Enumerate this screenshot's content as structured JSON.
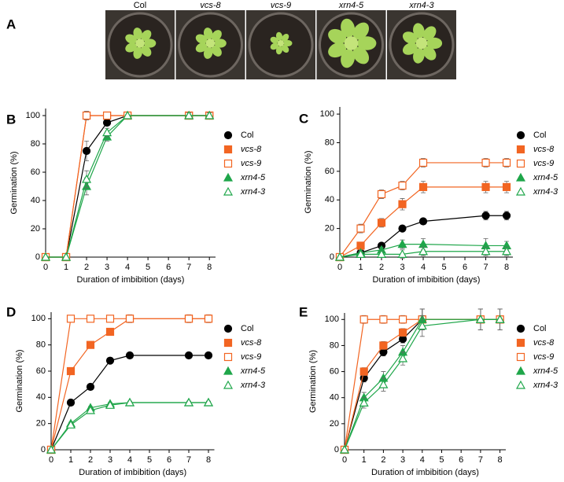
{
  "panel_a": {
    "label": "A",
    "genotypes": [
      "Col",
      "vcs-8",
      "vcs-9",
      "xrn4-5",
      "xrn4-3"
    ]
  },
  "chart_data": [
    {
      "type": "line",
      "panel": "B",
      "x_label": "Duration of imbibition (days)",
      "y_label": "Germination (%)",
      "x": [
        0,
        1,
        2,
        3,
        4,
        7,
        8
      ],
      "xlim": [
        0,
        8.3
      ],
      "xticks": [
        0,
        1,
        2,
        3,
        4,
        5,
        6,
        7,
        8
      ],
      "ylim": [
        0,
        105
      ],
      "yticks": [
        0,
        20,
        40,
        60,
        80,
        100
      ],
      "series": [
        {
          "name": "Col",
          "color": "#000000",
          "marker": "circle",
          "filled": true,
          "values": [
            0,
            0,
            75,
            95,
            100,
            100,
            100
          ],
          "errors": [
            0,
            0,
            7,
            2,
            0,
            2,
            2
          ]
        },
        {
          "name": "vcs-8",
          "color": "#f26522",
          "marker": "square",
          "filled": true,
          "values": [
            0,
            0,
            100,
            100,
            100,
            100,
            100
          ],
          "errors": [
            0,
            0,
            3,
            2,
            0,
            2,
            2
          ]
        },
        {
          "name": "vcs-9",
          "color": "#f26522",
          "marker": "square",
          "filled": false,
          "values": [
            0,
            0,
            100,
            100,
            100,
            100,
            100
          ],
          "errors": [
            0,
            0,
            3,
            2,
            0,
            2,
            2
          ]
        },
        {
          "name": "xrn4-5",
          "color": "#1fa64a",
          "marker": "triangle",
          "filled": true,
          "values": [
            0,
            0,
            50,
            85,
            100,
            100,
            100
          ],
          "errors": [
            0,
            0,
            6,
            3,
            0,
            2,
            2
          ]
        },
        {
          "name": "xrn4-3",
          "color": "#1fa64a",
          "marker": "triangle",
          "filled": false,
          "values": [
            0,
            0,
            55,
            88,
            100,
            100,
            100
          ],
          "errors": [
            0,
            0,
            6,
            3,
            0,
            2,
            2
          ]
        }
      ]
    },
    {
      "type": "line",
      "panel": "C",
      "x_label": "Duration of imbibition (days)",
      "y_label": "Germination (%)",
      "x": [
        0,
        1,
        2,
        3,
        4,
        7,
        8
      ],
      "xlim": [
        0,
        8.3
      ],
      "xticks": [
        0,
        1,
        2,
        3,
        4,
        5,
        6,
        7,
        8
      ],
      "ylim": [
        0,
        105
      ],
      "yticks": [
        0,
        20,
        40,
        60,
        80,
        100
      ],
      "series": [
        {
          "name": "Col",
          "color": "#000000",
          "marker": "circle",
          "filled": true,
          "values": [
            0,
            3,
            8,
            20,
            25,
            29,
            29
          ],
          "errors": [
            0,
            1,
            1,
            1,
            2,
            3,
            3
          ]
        },
        {
          "name": "vcs-8",
          "color": "#f26522",
          "marker": "square",
          "filled": true,
          "values": [
            0,
            8,
            24,
            37,
            49,
            49,
            49
          ],
          "errors": [
            0,
            2,
            3,
            4,
            4,
            4,
            4
          ]
        },
        {
          "name": "vcs-9",
          "color": "#f26522",
          "marker": "square",
          "filled": false,
          "values": [
            0,
            20,
            44,
            50,
            66,
            66,
            66
          ],
          "errors": [
            0,
            3,
            3,
            3,
            3,
            3,
            3
          ]
        },
        {
          "name": "xrn4-5",
          "color": "#1fa64a",
          "marker": "triangle",
          "filled": true,
          "values": [
            0,
            3,
            5,
            9,
            9,
            8,
            8
          ],
          "errors": [
            0,
            2,
            2,
            3,
            4,
            5,
            3
          ]
        },
        {
          "name": "xrn4-3",
          "color": "#1fa64a",
          "marker": "triangle",
          "filled": false,
          "values": [
            0,
            2,
            2,
            2,
            4,
            4,
            4
          ],
          "errors": [
            0,
            2,
            2,
            3,
            3,
            3,
            3
          ]
        }
      ]
    },
    {
      "type": "line",
      "panel": "D",
      "x_label": "Duration of imbibition (days)",
      "y_label": "Germination (%)",
      "x": [
        0,
        1,
        2,
        3,
        4,
        7,
        8
      ],
      "xlim": [
        0,
        8.3
      ],
      "xticks": [
        0,
        1,
        2,
        3,
        4,
        5,
        6,
        7,
        8
      ],
      "ylim": [
        0,
        105
      ],
      "yticks": [
        0,
        20,
        40,
        60,
        80,
        100
      ],
      "series": [
        {
          "name": "Col",
          "color": "#000000",
          "marker": "circle",
          "filled": true,
          "values": [
            0,
            36,
            48,
            68,
            72,
            72,
            72
          ],
          "errors": [
            0,
            1,
            1,
            1,
            1,
            1,
            1
          ]
        },
        {
          "name": "vcs-8",
          "color": "#f26522",
          "marker": "square",
          "filled": true,
          "values": [
            0,
            60,
            80,
            90,
            100,
            100,
            100
          ],
          "errors": [
            0,
            1,
            1,
            1,
            3,
            3,
            3
          ]
        },
        {
          "name": "vcs-9",
          "color": "#f26522",
          "marker": "square",
          "filled": false,
          "values": [
            0,
            100,
            100,
            100,
            100,
            100,
            100
          ],
          "errors": [
            0,
            1,
            1,
            1,
            1,
            1,
            1
          ]
        },
        {
          "name": "xrn4-5",
          "color": "#1fa64a",
          "marker": "triangle",
          "filled": true,
          "values": [
            0,
            20,
            32,
            35,
            36,
            36,
            36
          ],
          "errors": [
            0,
            1,
            1,
            1,
            1,
            1,
            1
          ]
        },
        {
          "name": "xrn4-3",
          "color": "#1fa64a",
          "marker": "triangle",
          "filled": false,
          "values": [
            0,
            19,
            30,
            34,
            36,
            36,
            36
          ],
          "errors": [
            0,
            1,
            1,
            1,
            1,
            1,
            1
          ]
        }
      ]
    },
    {
      "type": "line",
      "panel": "E",
      "x_label": "Duration of imbibition (days)",
      "y_label": "Germination (%)",
      "x": [
        0,
        1,
        2,
        3,
        4,
        7,
        8
      ],
      "xlim": [
        0,
        8.3
      ],
      "xticks": [
        0,
        1,
        2,
        3,
        4,
        5,
        6,
        7,
        8
      ],
      "ylim": [
        0,
        105
      ],
      "yticks": [
        0,
        20,
        40,
        60,
        80,
        100
      ],
      "series": [
        {
          "name": "Col",
          "color": "#000000",
          "marker": "circle",
          "filled": true,
          "values": [
            0,
            55,
            75,
            85,
            100,
            100,
            100
          ],
          "errors": [
            0,
            3,
            3,
            3,
            8,
            8,
            8
          ]
        },
        {
          "name": "vcs-8",
          "color": "#f26522",
          "marker": "square",
          "filled": true,
          "values": [
            0,
            60,
            80,
            90,
            100,
            100,
            100
          ],
          "errors": [
            0,
            3,
            3,
            3,
            8,
            8,
            8
          ]
        },
        {
          "name": "vcs-9",
          "color": "#f26522",
          "marker": "square",
          "filled": false,
          "values": [
            0,
            100,
            100,
            100,
            100,
            100,
            100
          ],
          "errors": [
            0,
            3,
            3,
            3,
            8,
            8,
            8
          ]
        },
        {
          "name": "xrn4-5",
          "color": "#1fa64a",
          "marker": "triangle",
          "filled": true,
          "values": [
            0,
            40,
            55,
            75,
            100,
            100,
            100
          ],
          "errors": [
            0,
            4,
            5,
            5,
            8,
            8,
            8
          ]
        },
        {
          "name": "xrn4-3",
          "color": "#1fa64a",
          "marker": "triangle",
          "filled": false,
          "values": [
            0,
            36,
            50,
            70,
            95,
            100,
            100
          ],
          "errors": [
            0,
            4,
            5,
            5,
            8,
            8,
            8
          ]
        }
      ]
    }
  ]
}
